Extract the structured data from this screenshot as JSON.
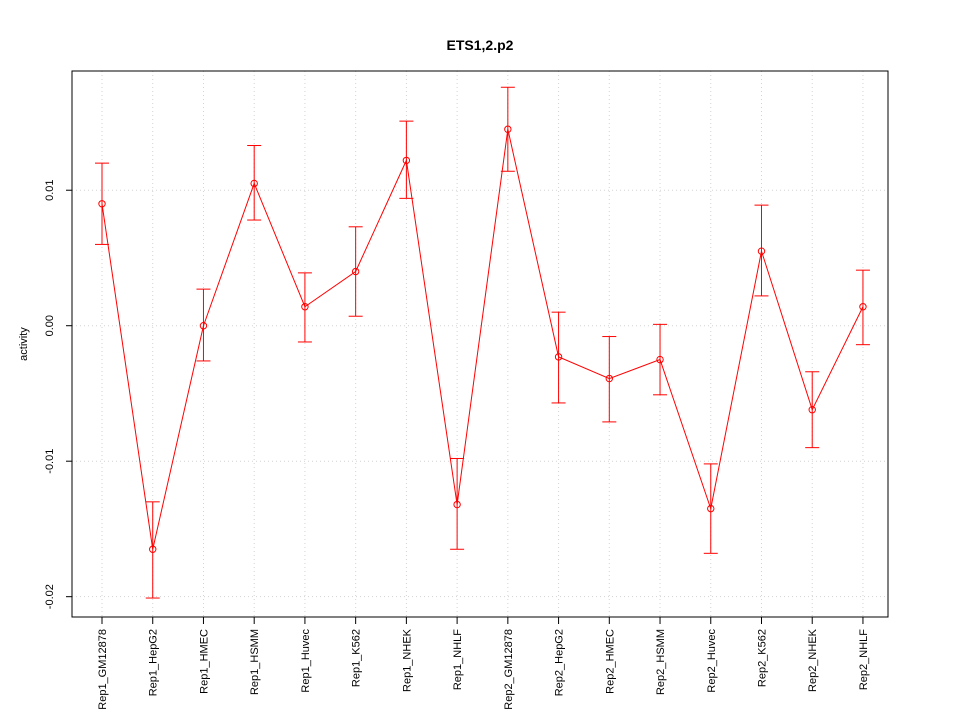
{
  "chart_data": {
    "type": "line",
    "title": "ETS1,2.p2",
    "xlabel": "",
    "ylabel": "activity",
    "ylim": [
      -0.0215,
      0.0188
    ],
    "y_ticks": [
      -0.02,
      -0.01,
      0.0,
      0.01
    ],
    "y_tick_labels": [
      "-0.02",
      "-0.01",
      "0.00",
      "0.01"
    ],
    "grid": true,
    "series_color": "#ff0000",
    "grid_color": "#d3d3d3",
    "categories": [
      "Rep1_GM12878",
      "Rep1_HepG2",
      "Rep1_HMEC",
      "Rep1_HSMM",
      "Rep1_Huvec",
      "Rep1_K562",
      "Rep1_NHEK",
      "Rep1_NHLF",
      "Rep2_GM12878",
      "Rep2_HepG2",
      "Rep2_HMEC",
      "Rep2_HSMM",
      "Rep2_Huvec",
      "Rep2_K562",
      "Rep2_NHEK",
      "Rep2_NHLF"
    ],
    "values": [
      0.009,
      -0.0165,
      0.0,
      0.0105,
      0.0014,
      0.004,
      0.0122,
      -0.0132,
      0.0145,
      -0.0023,
      -0.0039,
      -0.0025,
      -0.0135,
      0.0055,
      -0.0062,
      0.0014
    ],
    "error_lower": [
      0.006,
      -0.0201,
      -0.0026,
      0.0078,
      -0.0012,
      0.0007,
      0.0094,
      -0.0165,
      0.0114,
      -0.0057,
      -0.0071,
      -0.0051,
      -0.0168,
      0.0022,
      -0.009,
      -0.0014
    ],
    "error_upper": [
      0.012,
      -0.013,
      0.0027,
      0.0133,
      0.0039,
      0.0073,
      0.0151,
      -0.0098,
      0.0176,
      0.001,
      -0.0008,
      0.0001,
      -0.0102,
      0.0089,
      -0.0034,
      0.0041
    ]
  }
}
